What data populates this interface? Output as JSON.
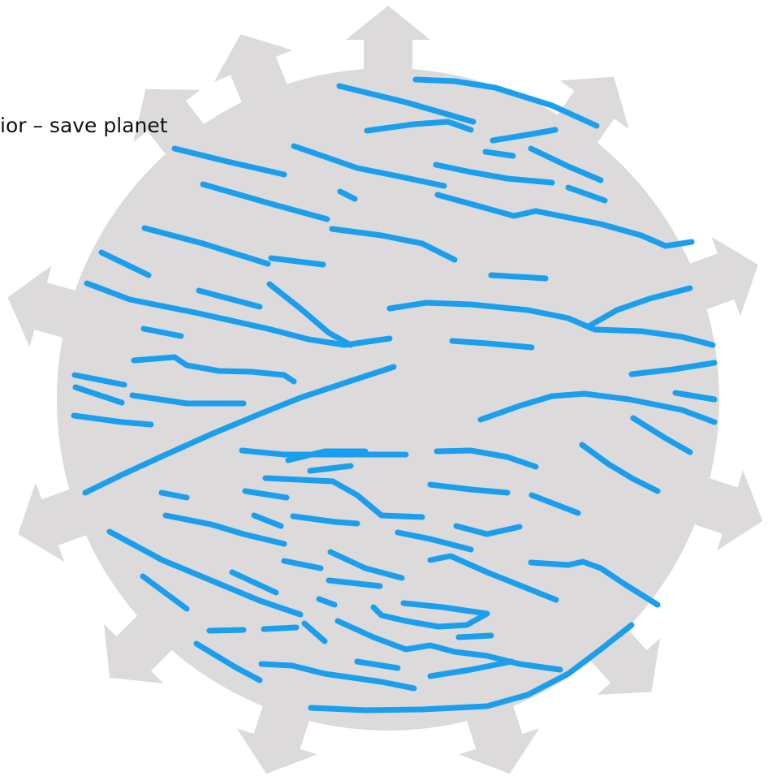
{
  "caption": {
    "text": "ior – save planet"
  },
  "colors": {
    "planet_fill": "#dcdada",
    "stroke": "#1a9eee",
    "background": "#ffffff",
    "text": "#111111"
  },
  "icons": {
    "gear": "planet-gear-icon",
    "arrow": "arrow-icon"
  }
}
